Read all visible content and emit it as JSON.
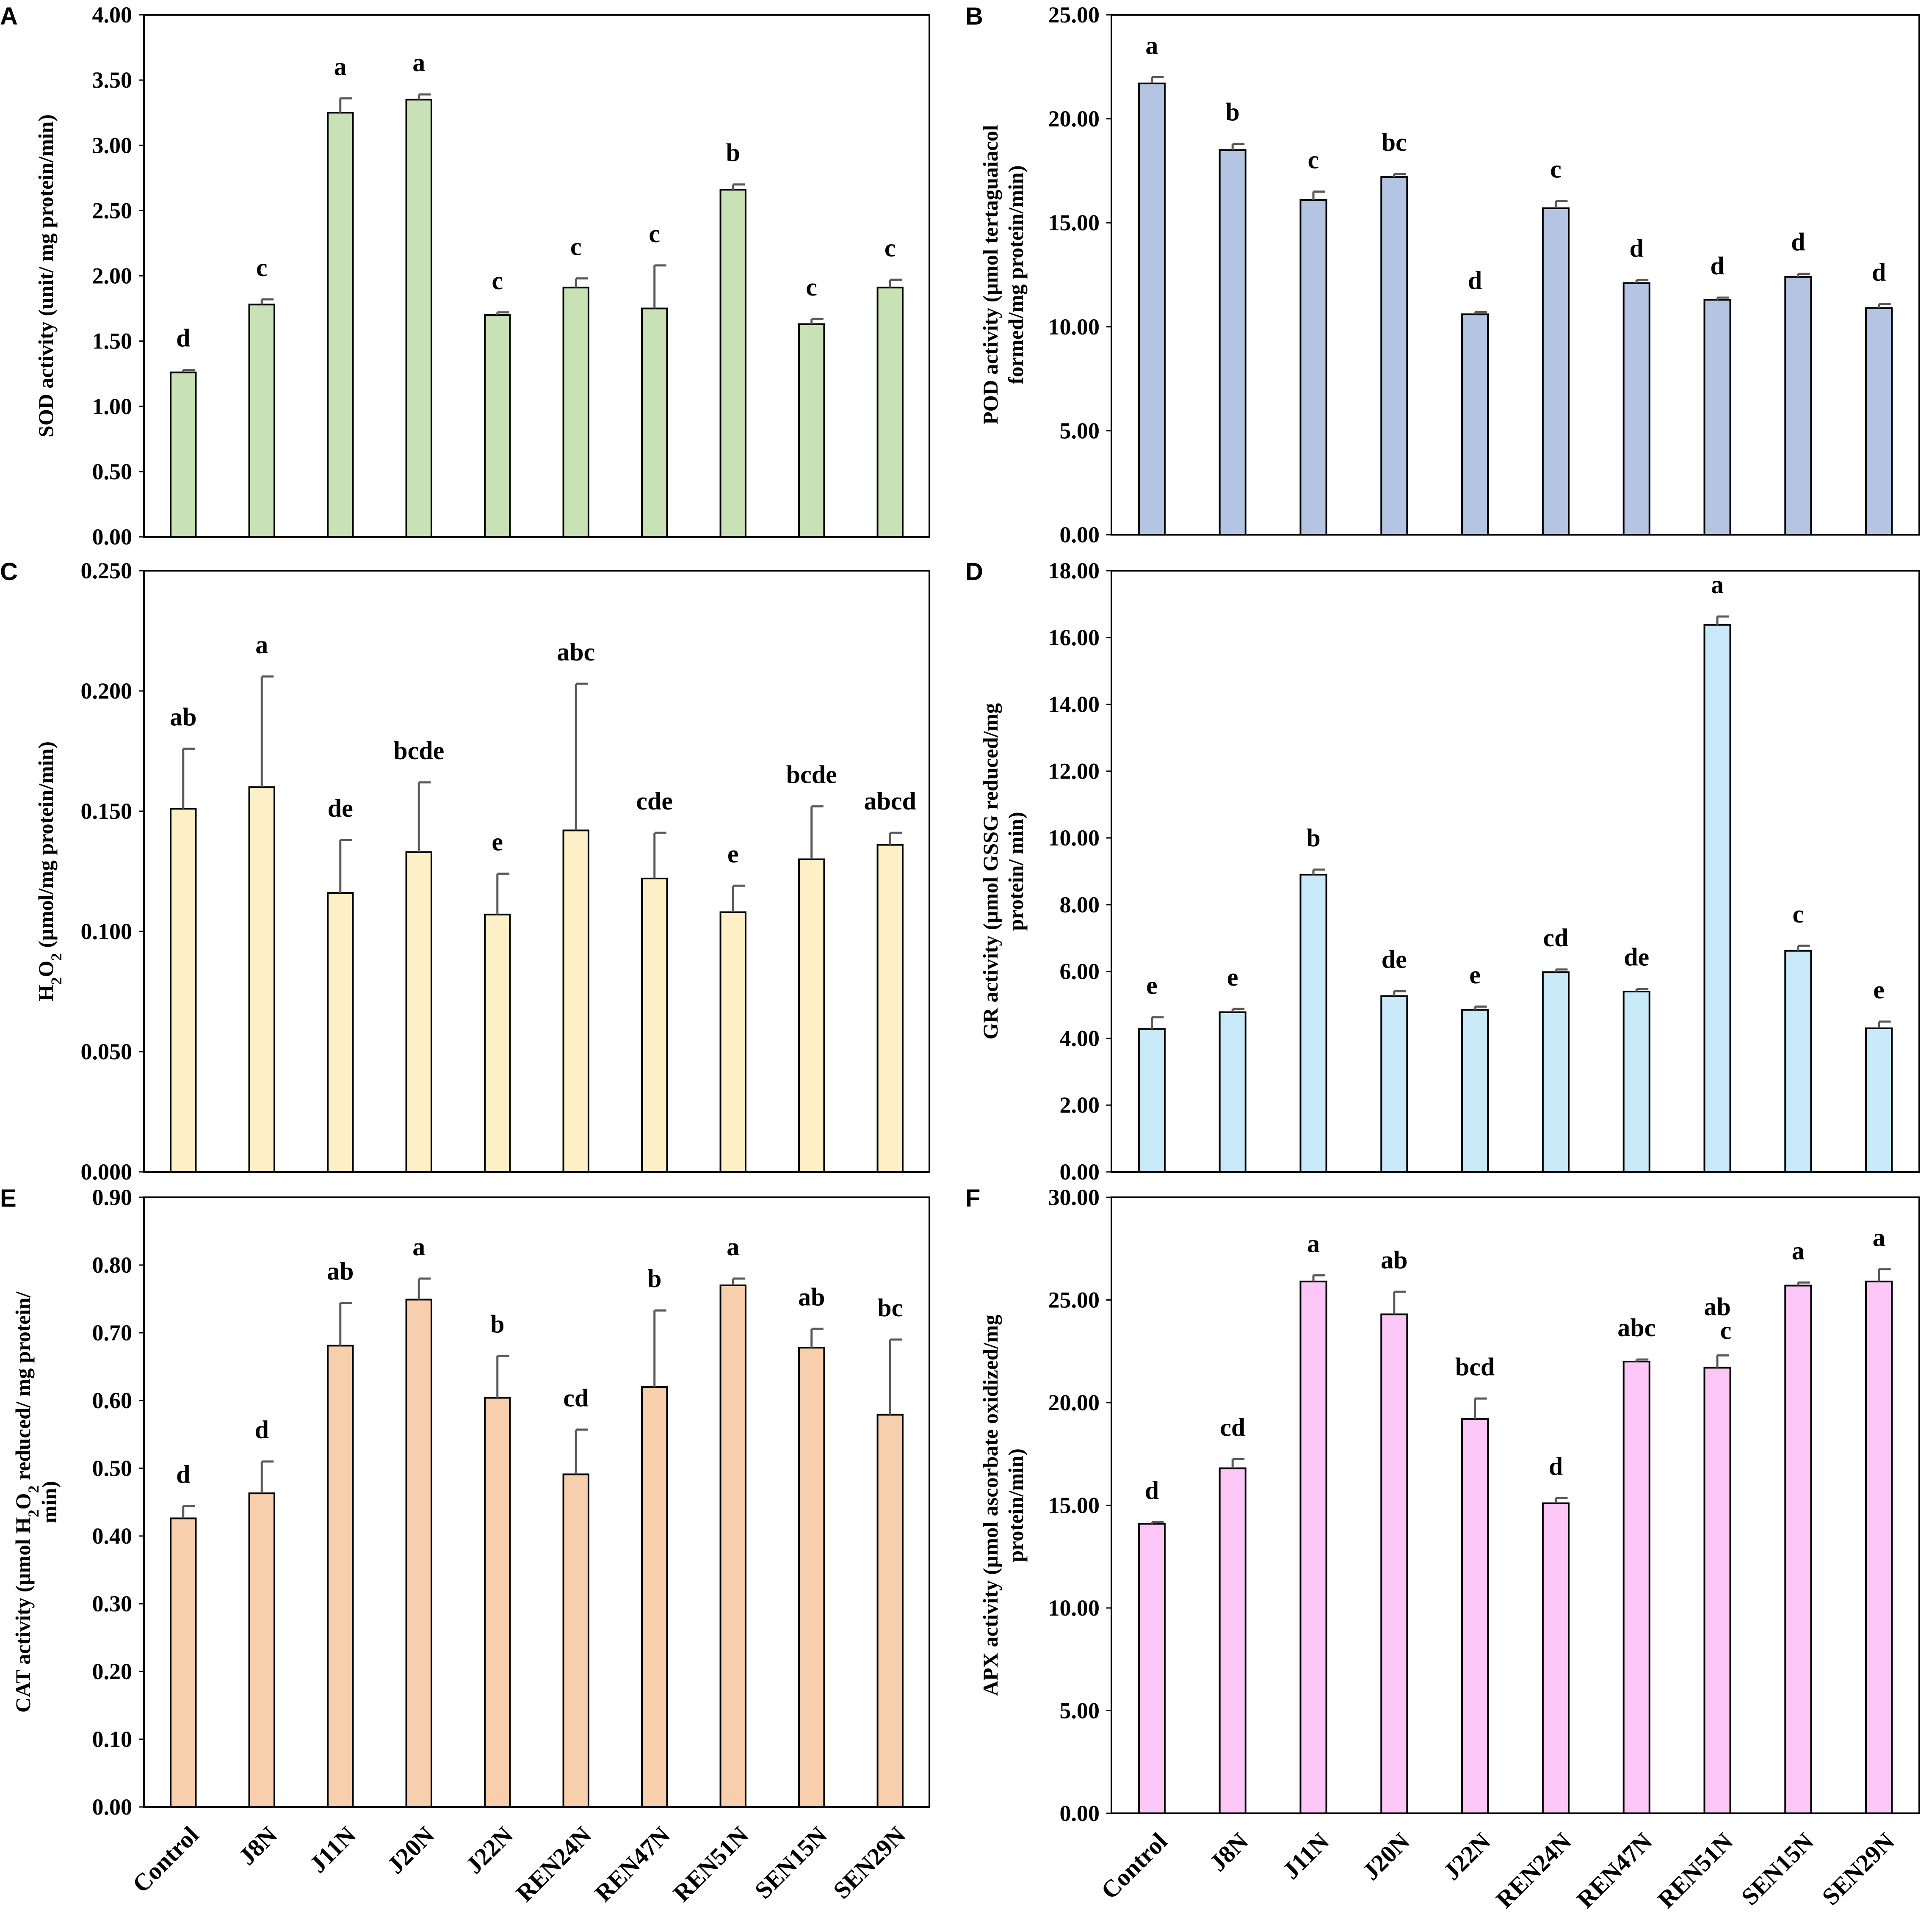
{
  "chart_data": [
    {
      "panel": "A",
      "type": "bar",
      "ylabel": "SOD activity (unit/ mg protein/min)",
      "ylim": [
        0,
        4
      ],
      "ticks": [
        "0.00",
        "0.50",
        "1.00",
        "1.50",
        "2.00",
        "2.50",
        "3.00",
        "3.50",
        "4.00"
      ],
      "color": "#c9e2b5",
      "categories": [
        "Control",
        "J8N",
        "J11N",
        "J20N",
        "J22N",
        "REN24N",
        "REN47N",
        "REN51N",
        "SEN15N",
        "SEN29N"
      ],
      "values": [
        1.26,
        1.78,
        3.25,
        3.35,
        1.7,
        1.91,
        1.75,
        2.66,
        1.63,
        1.91
      ],
      "errors": [
        0.02,
        0.04,
        0.11,
        0.04,
        0.02,
        0.07,
        0.33,
        0.04,
        0.04,
        0.06
      ],
      "letters": [
        "d",
        "c",
        "a",
        "a",
        "c",
        "c",
        "c",
        "b",
        "c",
        "c"
      ],
      "show_x_labels": false
    },
    {
      "panel": "B",
      "type": "bar",
      "ylabel": "POD activity (µmol tertaguaiacol formed/mg protein/min)",
      "ylabel_lines": [
        "POD activity (µmol tertaguaiacol",
        "formed/mg protein/min)"
      ],
      "ylim": [
        0,
        25
      ],
      "ticks": [
        "0.00",
        "5.00",
        "10.00",
        "15.00",
        "20.00",
        "25.00"
      ],
      "color": "#b4c5e4",
      "categories": [
        "Control",
        "J8N",
        "J11N",
        "J20N",
        "J22N",
        "REN24N",
        "REN47N",
        "REN51N",
        "SEN15N",
        "SEN29N"
      ],
      "values": [
        21.7,
        18.5,
        16.1,
        17.2,
        10.6,
        15.7,
        12.1,
        11.3,
        12.4,
        10.9
      ],
      "errors": [
        0.3,
        0.3,
        0.4,
        0.15,
        0.1,
        0.35,
        0.15,
        0.1,
        0.15,
        0.2
      ],
      "letters": [
        "a",
        "b",
        "c",
        "bc",
        "d",
        "c",
        "d",
        "d",
        "d",
        "d"
      ],
      "show_x_labels": false
    },
    {
      "panel": "C",
      "type": "bar",
      "ylabel": "H2O2 (µmol/mg protein/min)",
      "ylim": [
        0,
        0.25
      ],
      "ticks": [
        "0.000",
        "0.050",
        "0.100",
        "0.150",
        "0.200",
        "0.250"
      ],
      "color": "#fdf0c7",
      "categories": [
        "Control",
        "J8N",
        "J11N",
        "J20N",
        "J22N",
        "REN24N",
        "REN47N",
        "REN51N",
        "SEN15N",
        "SEN29N"
      ],
      "values": [
        0.151,
        0.16,
        0.116,
        0.133,
        0.107,
        0.142,
        0.122,
        0.108,
        0.13,
        0.136
      ],
      "errors": [
        0.025,
        0.046,
        0.022,
        0.029,
        0.017,
        0.061,
        0.019,
        0.011,
        0.022,
        0.005
      ],
      "letters": [
        "ab",
        "a",
        "de",
        "bcde",
        "e",
        "abc",
        "cde",
        "e",
        "bcde",
        "abcd"
      ],
      "show_x_labels": false
    },
    {
      "panel": "D",
      "type": "bar",
      "ylabel": "GR activity (µmol GSSG reduced/mg protein/ min)",
      "ylabel_lines": [
        "GR activity (µmol GSSG reduced/mg",
        "protein/ min)"
      ],
      "ylim": [
        0,
        18
      ],
      "ticks": [
        "0.00",
        "2.00",
        "4.00",
        "6.00",
        "8.00",
        "10.00",
        "12.00",
        "14.00",
        "16.00",
        "18.00"
      ],
      "color": "#c8e9f8",
      "categories": [
        "Control",
        "J8N",
        "J11N",
        "J20N",
        "J22N",
        "REN24N",
        "REN47N",
        "REN51N",
        "SEN15N",
        "SEN29N"
      ],
      "values": [
        4.28,
        4.78,
        8.9,
        5.26,
        4.85,
        5.98,
        5.4,
        16.38,
        6.62,
        4.3
      ],
      "errors": [
        0.35,
        0.1,
        0.15,
        0.15,
        0.1,
        0.08,
        0.08,
        0.25,
        0.15,
        0.2
      ],
      "letters": [
        "e",
        "e",
        "b",
        "de",
        "e",
        "cd",
        "de",
        "a",
        "c",
        "e"
      ],
      "show_x_labels": false
    },
    {
      "panel": "E",
      "type": "bar",
      "ylabel": "CAT activity (µmol H2O2 reduced/ mg protein/ min)",
      "ylim": [
        0,
        0.9
      ],
      "ticks": [
        "0.00",
        "0.10",
        "0.20",
        "0.30",
        "0.40",
        "0.50",
        "0.60",
        "0.70",
        "0.80",
        "0.90"
      ],
      "color": "#f8cfad",
      "categories": [
        "Control",
        "J8N",
        "J11N",
        "J20N",
        "J22N",
        "REN24N",
        "REN47N",
        "REN51N",
        "SEN15N",
        "SEN29N"
      ],
      "values": [
        0.426,
        0.463,
        0.681,
        0.749,
        0.604,
        0.491,
        0.62,
        0.77,
        0.678,
        0.579
      ],
      "errors": [
        0.018,
        0.047,
        0.063,
        0.031,
        0.062,
        0.066,
        0.113,
        0.01,
        0.028,
        0.111
      ],
      "letters": [
        "d",
        "d",
        "ab",
        "a",
        "b",
        "cd",
        "b",
        "a",
        "ab",
        "bc"
      ],
      "show_x_labels": true
    },
    {
      "panel": "F",
      "type": "bar",
      "ylabel": "APX activity (µmol ascorbate oxidized/mg protein/min)",
      "ylabel_lines": [
        "APX activity (µmol ascorbate oxidized/mg",
        "protein/min)"
      ],
      "ylim": [
        0,
        30
      ],
      "ticks": [
        "0.00",
        "5.00",
        "10.00",
        "15.00",
        "20.00",
        "25.00",
        "30.00"
      ],
      "color": "#fcc7f6",
      "categories": [
        "Control",
        "J8N",
        "J11N",
        "J20N",
        "J22N",
        "REN24N",
        "REN47N",
        "REN51N",
        "SEN15N",
        "SEN29N"
      ],
      "values": [
        14.1,
        16.8,
        25.9,
        24.3,
        19.2,
        15.1,
        22.0,
        21.7,
        25.7,
        25.9
      ],
      "errors": [
        0.08,
        0.45,
        0.3,
        1.1,
        1.0,
        0.25,
        0.1,
        0.6,
        0.15,
        0.6
      ],
      "letters": [
        "d",
        "cd",
        "a",
        "ab",
        "bcd",
        "d",
        "abc",
        "ab\nc",
        "a",
        "a"
      ],
      "show_x_labels": true
    }
  ]
}
